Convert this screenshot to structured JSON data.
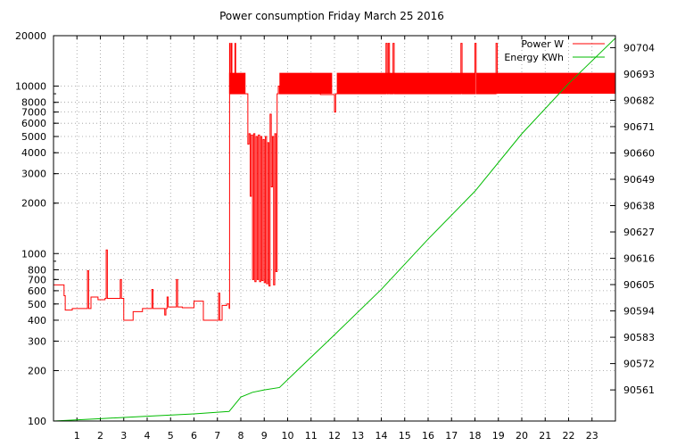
{
  "chart_data": {
    "type": "line",
    "title": "Power consumption Friday March 25 2016",
    "xlabel": "",
    "ylabel": "",
    "y2label": "",
    "grid": true,
    "legend_position": "top-right",
    "x_range": [
      0,
      24
    ],
    "y_range": [
      100,
      20000
    ],
    "y_scale": "log",
    "y2_range": [
      90548,
      90709
    ],
    "x_ticks": [
      "1",
      "2",
      "3",
      "4",
      "5",
      "6",
      "7",
      "8",
      "9",
      "10",
      "11",
      "12",
      "13",
      "14",
      "15",
      "16",
      "17",
      "18",
      "19",
      "20",
      "21",
      "22",
      "23"
    ],
    "y_ticks": [
      {
        "value": 100,
        "label": "100"
      },
      {
        "value": 200,
        "label": "200"
      },
      {
        "value": 300,
        "label": "300"
      },
      {
        "value": 400,
        "label": "400"
      },
      {
        "value": 500,
        "label": "500"
      },
      {
        "value": 600,
        "label": "600"
      },
      {
        "value": 700,
        "label": "700"
      },
      {
        "value": 800,
        "label": "800"
      },
      {
        "value": 1000,
        "label": "1000"
      },
      {
        "value": 2000,
        "label": "2000"
      },
      {
        "value": 3000,
        "label": "3000"
      },
      {
        "value": 4000,
        "label": "4000"
      },
      {
        "value": 5000,
        "label": "5000"
      },
      {
        "value": 6000,
        "label": "6000"
      },
      {
        "value": 7000,
        "label": "7000"
      },
      {
        "value": 8000,
        "label": "8000"
      },
      {
        "value": 10000,
        "label": "10000"
      },
      {
        "value": 20000,
        "label": "20000"
      }
    ],
    "y2_ticks": [
      "90561",
      "90572",
      "90583",
      "90594",
      "90605",
      "90616",
      "90627",
      "90638",
      "90649",
      "90660",
      "90671",
      "90682",
      "90693",
      "90704"
    ],
    "series": [
      {
        "name": "Power W",
        "color": "#ff0000",
        "axis": "left",
        "points": [
          [
            0.0,
            650
          ],
          [
            0.45,
            650
          ],
          [
            0.45,
            560
          ],
          [
            0.5,
            460
          ],
          [
            0.8,
            460
          ],
          [
            0.8,
            470
          ],
          [
            1.1,
            470
          ],
          [
            1.4,
            470
          ],
          [
            1.45,
            790
          ],
          [
            1.5,
            470
          ],
          [
            1.6,
            550
          ],
          [
            1.9,
            550
          ],
          [
            1.9,
            530
          ],
          [
            2.2,
            540
          ],
          [
            2.25,
            1050
          ],
          [
            2.3,
            540
          ],
          [
            2.8,
            540
          ],
          [
            2.85,
            700
          ],
          [
            2.9,
            540
          ],
          [
            3.0,
            540
          ],
          [
            3.0,
            400
          ],
          [
            3.1,
            400
          ],
          [
            3.4,
            400
          ],
          [
            3.4,
            450
          ],
          [
            3.8,
            450
          ],
          [
            3.8,
            470
          ],
          [
            4.15,
            470
          ],
          [
            4.2,
            610
          ],
          [
            4.25,
            470
          ],
          [
            4.7,
            470
          ],
          [
            4.75,
            430
          ],
          [
            4.8,
            470
          ],
          [
            4.85,
            550
          ],
          [
            4.9,
            480
          ],
          [
            5.2,
            480
          ],
          [
            5.25,
            700
          ],
          [
            5.3,
            480
          ],
          [
            5.5,
            475
          ],
          [
            5.95,
            475
          ],
          [
            6.0,
            520
          ],
          [
            6.4,
            520
          ],
          [
            6.4,
            400
          ],
          [
            6.7,
            400
          ],
          [
            7.0,
            400
          ],
          [
            7.05,
            580
          ],
          [
            7.1,
            400
          ],
          [
            7.2,
            400
          ],
          [
            7.2,
            490
          ],
          [
            7.35,
            490
          ],
          [
            7.4,
            500
          ],
          [
            7.5,
            470
          ]
        ],
        "dense_bands": [
          {
            "x_start": 7.5,
            "x_end": 8.2,
            "low": 9000,
            "high": 12000
          },
          {
            "x_start": 9.65,
            "x_end": 11.9,
            "low": 9000,
            "high": 12000
          },
          {
            "x_start": 12.1,
            "x_end": 18.0,
            "low": 9000,
            "high": 12000
          },
          {
            "x_start": 18.05,
            "x_end": 24.0,
            "low": 9000,
            "high": 12000
          }
        ],
        "dense_segments": [
          [
            7.5,
            470
          ],
          [
            7.52,
            18000
          ],
          [
            7.55,
            9000
          ],
          [
            7.6,
            18000
          ],
          [
            7.62,
            9000
          ],
          [
            7.65,
            9000
          ],
          [
            7.75,
            18000
          ],
          [
            7.78,
            9000
          ],
          [
            8.2,
            9000
          ],
          [
            8.25,
            9000
          ],
          [
            8.3,
            4500
          ],
          [
            8.35,
            5200
          ],
          [
            8.4,
            2200
          ],
          [
            8.45,
            5100
          ],
          [
            8.5,
            700
          ],
          [
            8.55,
            5200
          ],
          [
            8.6,
            680
          ],
          [
            8.65,
            5000
          ],
          [
            8.7,
            700
          ],
          [
            8.75,
            5100
          ],
          [
            8.8,
            680
          ],
          [
            8.85,
            5000
          ],
          [
            8.9,
            690
          ],
          [
            8.95,
            4800
          ],
          [
            9.0,
            670
          ],
          [
            9.05,
            5000
          ],
          [
            9.1,
            660
          ],
          [
            9.15,
            4600
          ],
          [
            9.2,
            640
          ],
          [
            9.25,
            6800
          ],
          [
            9.3,
            2500
          ],
          [
            9.35,
            5000
          ],
          [
            9.4,
            650
          ],
          [
            9.45,
            5200
          ],
          [
            9.5,
            780
          ],
          [
            9.55,
            9000
          ],
          [
            9.6,
            10000
          ],
          [
            9.65,
            9000
          ],
          [
            11.2,
            9000
          ],
          [
            11.4,
            8900
          ],
          [
            11.9,
            8900
          ],
          [
            12.0,
            7000
          ],
          [
            12.05,
            9000
          ],
          [
            14.2,
            18000
          ],
          [
            14.25,
            9000
          ],
          [
            14.3,
            18000
          ],
          [
            14.35,
            9000
          ],
          [
            14.5,
            18000
          ],
          [
            14.55,
            9000
          ],
          [
            17.4,
            18000
          ],
          [
            17.45,
            9000
          ],
          [
            18.0,
            18000
          ],
          [
            18.05,
            9000
          ],
          [
            18.9,
            18000
          ],
          [
            18.95,
            9000
          ]
        ]
      },
      {
        "name": "Energy KWh",
        "color": "#00bb00",
        "axis": "right",
        "points": [
          [
            0.0,
            90548
          ],
          [
            2.0,
            90549
          ],
          [
            4.0,
            90550
          ],
          [
            6.0,
            90551
          ],
          [
            7.5,
            90552
          ],
          [
            8.0,
            90558
          ],
          [
            8.5,
            90560
          ],
          [
            9.0,
            90561
          ],
          [
            9.65,
            90562
          ],
          [
            10.5,
            90570
          ],
          [
            12.0,
            90584
          ],
          [
            14.0,
            90603
          ],
          [
            16.0,
            90624
          ],
          [
            18.0,
            90644
          ],
          [
            20.0,
            90668
          ],
          [
            22.0,
            90689
          ],
          [
            24.0,
            90708
          ]
        ]
      }
    ]
  }
}
